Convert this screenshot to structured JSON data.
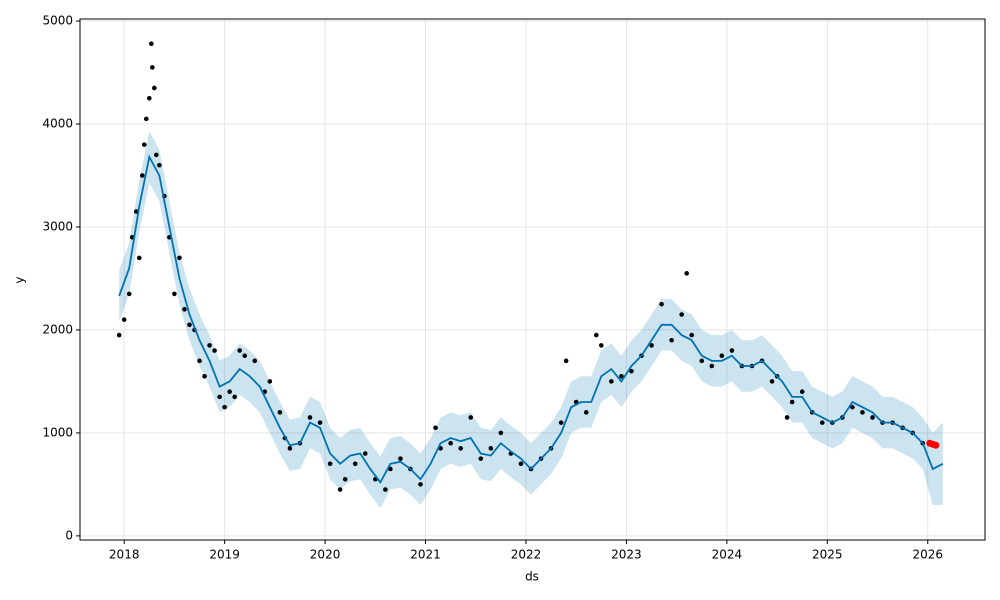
{
  "chart_data": {
    "type": "forecast",
    "x_label": "ds",
    "y_label": "y",
    "xlim": [
      2017.56,
      2026.57
    ],
    "ylim": [
      -40,
      5020
    ],
    "xticks": [
      2018,
      2019,
      2020,
      2021,
      2022,
      2023,
      2024,
      2025,
      2026
    ],
    "yticks": [
      0,
      1000,
      2000,
      3000,
      4000,
      5000
    ],
    "grid": true,
    "forecast": {
      "color": "#0072b2",
      "x": [
        2017.95,
        2018.05,
        2018.15,
        2018.25,
        2018.35,
        2018.45,
        2018.55,
        2018.65,
        2018.75,
        2018.85,
        2018.95,
        2019.05,
        2019.15,
        2019.25,
        2019.35,
        2019.45,
        2019.55,
        2019.65,
        2019.75,
        2019.85,
        2019.95,
        2020.05,
        2020.15,
        2020.25,
        2020.35,
        2020.45,
        2020.55,
        2020.65,
        2020.75,
        2020.85,
        2020.95,
        2021.05,
        2021.15,
        2021.25,
        2021.35,
        2021.45,
        2021.55,
        2021.65,
        2021.75,
        2021.85,
        2021.95,
        2022.05,
        2022.15,
        2022.25,
        2022.35,
        2022.45,
        2022.55,
        2022.65,
        2022.75,
        2022.85,
        2022.95,
        2023.05,
        2023.15,
        2023.25,
        2023.35,
        2023.45,
        2023.55,
        2023.65,
        2023.75,
        2023.85,
        2023.95,
        2024.05,
        2024.15,
        2024.25,
        2024.35,
        2024.45,
        2024.55,
        2024.65,
        2024.75,
        2024.85,
        2024.95,
        2025.05,
        2025.15,
        2025.25,
        2025.35,
        2025.45,
        2025.55,
        2025.65,
        2025.75,
        2025.85,
        2025.95,
        2026.05,
        2026.15
      ],
      "values": [
        2330,
        2600,
        3200,
        3680,
        3500,
        3000,
        2500,
        2150,
        1900,
        1700,
        1450,
        1500,
        1620,
        1550,
        1450,
        1250,
        1050,
        880,
        900,
        1100,
        1050,
        800,
        700,
        780,
        800,
        650,
        520,
        700,
        720,
        650,
        550,
        700,
        900,
        950,
        920,
        950,
        800,
        780,
        900,
        820,
        750,
        650,
        750,
        850,
        1000,
        1250,
        1300,
        1300,
        1550,
        1620,
        1500,
        1650,
        1750,
        1900,
        2050,
        2050,
        1950,
        1900,
        1750,
        1700,
        1700,
        1750,
        1650,
        1650,
        1700,
        1600,
        1500,
        1350,
        1350,
        1200,
        1150,
        1100,
        1150,
        1300,
        1250,
        1200,
        1100,
        1100,
        1050,
        1000,
        900,
        650,
        700
      ],
      "lower": [
        2080,
        2350,
        2950,
        3430,
        3250,
        2750,
        2250,
        1900,
        1650,
        1450,
        1200,
        1250,
        1370,
        1300,
        1200,
        1000,
        800,
        630,
        650,
        850,
        800,
        550,
        450,
        530,
        550,
        400,
        270,
        450,
        470,
        400,
        300,
        450,
        650,
        700,
        670,
        700,
        550,
        530,
        650,
        570,
        500,
        400,
        500,
        600,
        750,
        1000,
        1050,
        1050,
        1300,
        1370,
        1250,
        1400,
        1500,
        1650,
        1800,
        1800,
        1700,
        1650,
        1500,
        1450,
        1450,
        1500,
        1400,
        1400,
        1450,
        1350,
        1250,
        1100,
        1100,
        950,
        900,
        850,
        900,
        1050,
        1000,
        950,
        850,
        850,
        800,
        750,
        650,
        300,
        300
      ],
      "upper": [
        2580,
        2850,
        3450,
        3930,
        3750,
        3250,
        2750,
        2400,
        2150,
        1950,
        1700,
        1750,
        1870,
        1800,
        1700,
        1500,
        1300,
        1130,
        1150,
        1350,
        1300,
        1050,
        950,
        1030,
        1050,
        900,
        770,
        950,
        970,
        900,
        800,
        950,
        1150,
        1200,
        1170,
        1200,
        1050,
        1030,
        1150,
        1070,
        1000,
        900,
        1000,
        1100,
        1250,
        1500,
        1550,
        1550,
        1800,
        1870,
        1750,
        1900,
        2000,
        2150,
        2300,
        2300,
        2200,
        2150,
        2000,
        1950,
        1950,
        2000,
        1900,
        1900,
        1950,
        1850,
        1750,
        1600,
        1600,
        1450,
        1400,
        1350,
        1400,
        1550,
        1500,
        1450,
        1350,
        1350,
        1300,
        1250,
        1150,
        1000,
        1100
      ]
    },
    "observed": {
      "color": "#000000",
      "x": [
        2017.95,
        2018.0,
        2018.05,
        2018.08,
        2018.12,
        2018.15,
        2018.18,
        2018.2,
        2018.22,
        2018.25,
        2018.27,
        2018.28,
        2018.3,
        2018.32,
        2018.35,
        2018.4,
        2018.45,
        2018.5,
        2018.55,
        2018.6,
        2018.65,
        2018.7,
        2018.75,
        2018.8,
        2018.85,
        2018.9,
        2018.95,
        2019.0,
        2019.05,
        2019.1,
        2019.15,
        2019.2,
        2019.3,
        2019.4,
        2019.45,
        2019.55,
        2019.6,
        2019.65,
        2019.75,
        2019.85,
        2019.95,
        2020.05,
        2020.15,
        2020.2,
        2020.3,
        2020.4,
        2020.5,
        2020.6,
        2020.65,
        2020.75,
        2020.85,
        2020.95,
        2021.1,
        2021.15,
        2021.25,
        2021.35,
        2021.45,
        2021.55,
        2021.65,
        2021.75,
        2021.85,
        2021.95,
        2022.05,
        2022.15,
        2022.25,
        2022.35,
        2022.4,
        2022.5,
        2022.6,
        2022.7,
        2022.75,
        2022.85,
        2022.95,
        2023.05,
        2023.15,
        2023.25,
        2023.35,
        2023.45,
        2023.55,
        2023.6,
        2023.65,
        2023.75,
        2023.85,
        2023.95,
        2024.05,
        2024.15,
        2024.25,
        2024.35,
        2024.45,
        2024.5,
        2024.6,
        2024.65,
        2024.75,
        2024.85,
        2024.95,
        2025.05,
        2025.15,
        2025.25,
        2025.35,
        2025.45,
        2025.55,
        2025.65,
        2025.75,
        2025.85,
        2025.95
      ],
      "values": [
        1950,
        2100,
        2350,
        2900,
        3150,
        2700,
        3500,
        3800,
        4050,
        4250,
        4780,
        4550,
        4350,
        3700,
        3600,
        3300,
        2900,
        2350,
        2700,
        2200,
        2050,
        2000,
        1700,
        1550,
        1850,
        1800,
        1350,
        1250,
        1400,
        1350,
        1800,
        1750,
        1700,
        1400,
        1500,
        1200,
        950,
        850,
        900,
        1150,
        1100,
        700,
        450,
        550,
        700,
        800,
        550,
        450,
        650,
        750,
        650,
        500,
        1050,
        850,
        900,
        850,
        1150,
        750,
        850,
        1000,
        800,
        700,
        650,
        750,
        850,
        1100,
        1700,
        1300,
        1200,
        1950,
        1850,
        1500,
        1550,
        1600,
        1750,
        1850,
        2250,
        1900,
        2150,
        2550,
        1950,
        1700,
        1650,
        1750,
        1800,
        1650,
        1650,
        1700,
        1500,
        1550,
        1150,
        1300,
        1400,
        1200,
        1100,
        1100,
        1150,
        1250,
        1200,
        1150,
        1100,
        1100,
        1050,
        1000,
        900
      ]
    },
    "recent": {
      "color": "#ff0000",
      "x": [
        2026.02,
        2026.05,
        2026.08
      ],
      "values": [
        900,
        890,
        880
      ]
    }
  }
}
